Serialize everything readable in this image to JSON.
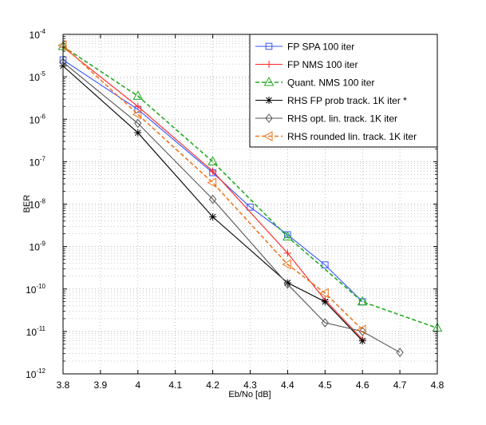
{
  "chart_data": {
    "type": "line",
    "title": "",
    "xlabel": "Eb/No [dB]",
    "ylabel": "BER",
    "xlim": [
      3.8,
      4.8
    ],
    "ylim_exp": [
      -12,
      -4
    ],
    "yscale": "log",
    "grid": true,
    "legend_position": "top-right",
    "xticks": [
      "3.8",
      "3.9",
      "4",
      "4.1",
      "4.2",
      "4.3",
      "4.4",
      "4.5",
      "4.6",
      "4.7",
      "4.8"
    ],
    "xtick_values": [
      3.8,
      3.9,
      4.0,
      4.1,
      4.2,
      4.3,
      4.4,
      4.5,
      4.6,
      4.7,
      4.8
    ],
    "ytick_base": "10",
    "ytick_exponents": [
      "-12",
      "-11",
      "-10",
      "-9",
      "-8",
      "-7",
      "-6",
      "-5",
      "-4"
    ],
    "series": [
      {
        "name": "FP SPA 100 iter",
        "color": "#3355ff",
        "dash": "solid",
        "marker": "square",
        "x": [
          3.8,
          4.0,
          4.2,
          4.3,
          4.4,
          4.5,
          4.6
        ],
        "y": [
          2.5e-05,
          1.7e-06,
          5.5e-08,
          8.5e-09,
          1.9e-09,
          3.7e-10,
          5e-11
        ]
      },
      {
        "name": "FP NMS 100 iter",
        "color": "#ff2222",
        "dash": "solid",
        "marker": "plus",
        "x": [
          3.8,
          4.0,
          4.2,
          4.4,
          4.5,
          4.6
        ],
        "y": [
          5e-05,
          2e-06,
          6e-08,
          7e-10,
          5.5e-11,
          6.5e-12
        ]
      },
      {
        "name": "Quant. NMS 100 iter",
        "color": "#22aa22",
        "dash": "dashed",
        "marker": "triangle-up",
        "x": [
          3.8,
          4.0,
          4.2,
          4.4,
          4.6,
          4.8
        ],
        "y": [
          5.2e-05,
          3.5e-06,
          1e-07,
          1.7e-09,
          5e-11,
          1.2e-11
        ]
      },
      {
        "name": "RHS FP prob track. 1K iter *",
        "color": "#000000",
        "dash": "solid",
        "marker": "star",
        "x": [
          3.8,
          4.0,
          4.2,
          4.4,
          4.5,
          4.6
        ],
        "y": [
          1.8e-05,
          4.8e-07,
          5e-09,
          1.4e-10,
          5e-11,
          6e-12
        ]
      },
      {
        "name": "RHS opt. lin. track. 1K iter",
        "color": "#555555",
        "dash": "solid",
        "marker": "diamond",
        "x": [
          3.8,
          4.0,
          4.2,
          4.4,
          4.5,
          4.6,
          4.7
        ],
        "y": [
          2.2e-05,
          8e-07,
          1.3e-08,
          1.3e-10,
          1.6e-11,
          1e-11,
          3.2e-12
        ]
      },
      {
        "name": "RHS rounded lin. track. 1K iter",
        "color": "#ee7722",
        "dash": "dashed",
        "marker": "triangle-left",
        "x": [
          3.8,
          4.0,
          4.2,
          4.4,
          4.5,
          4.6
        ],
        "y": [
          5.5e-05,
          1.3e-06,
          3.2e-08,
          3.8e-10,
          8e-11,
          1.1e-11
        ]
      }
    ]
  }
}
